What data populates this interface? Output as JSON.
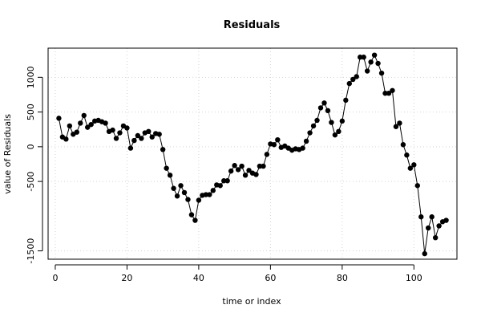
{
  "chart_data": {
    "type": "line",
    "title": "Residuals",
    "xlabel": "time or index",
    "ylabel": "value of Residuals",
    "xlim": [
      -2,
      112
    ],
    "ylim": [
      -1620,
      1420
    ],
    "xticks": [
      0,
      20,
      40,
      60,
      80,
      100
    ],
    "yticks": [
      -1500,
      -500,
      0,
      500,
      1000
    ],
    "grid": true,
    "line_color": "#000000",
    "point_color": "#000000",
    "grid_color": "#d3d3d3",
    "series": [
      {
        "values": [
          [
            1,
            410
          ],
          [
            2,
            140
          ],
          [
            3,
            110
          ],
          [
            4,
            300
          ],
          [
            5,
            180
          ],
          [
            6,
            210
          ],
          [
            7,
            340
          ],
          [
            8,
            450
          ],
          [
            9,
            280
          ],
          [
            10,
            320
          ],
          [
            11,
            370
          ],
          [
            12,
            380
          ],
          [
            13,
            360
          ],
          [
            14,
            340
          ],
          [
            15,
            220
          ],
          [
            16,
            240
          ],
          [
            17,
            120
          ],
          [
            18,
            200
          ],
          [
            19,
            300
          ],
          [
            20,
            270
          ],
          [
            21,
            -20
          ],
          [
            22,
            90
          ],
          [
            23,
            160
          ],
          [
            24,
            120
          ],
          [
            25,
            200
          ],
          [
            26,
            220
          ],
          [
            27,
            140
          ],
          [
            28,
            190
          ],
          [
            29,
            180
          ],
          [
            30,
            -40
          ],
          [
            31,
            -310
          ],
          [
            32,
            -410
          ],
          [
            33,
            -600
          ],
          [
            34,
            -710
          ],
          [
            35,
            -560
          ],
          [
            36,
            -660
          ],
          [
            37,
            -760
          ],
          [
            38,
            -980
          ],
          [
            39,
            -1060
          ],
          [
            40,
            -770
          ],
          [
            41,
            -700
          ],
          [
            42,
            -690
          ],
          [
            43,
            -690
          ],
          [
            44,
            -630
          ],
          [
            45,
            -550
          ],
          [
            46,
            -560
          ],
          [
            47,
            -490
          ],
          [
            48,
            -490
          ],
          [
            49,
            -350
          ],
          [
            50,
            -270
          ],
          [
            51,
            -330
          ],
          [
            52,
            -280
          ],
          [
            53,
            -410
          ],
          [
            54,
            -340
          ],
          [
            55,
            -380
          ],
          [
            56,
            -400
          ],
          [
            57,
            -280
          ],
          [
            58,
            -280
          ],
          [
            59,
            -110
          ],
          [
            60,
            40
          ],
          [
            61,
            30
          ],
          [
            62,
            100
          ],
          [
            63,
            -10
          ],
          [
            64,
            10
          ],
          [
            65,
            -20
          ],
          [
            66,
            -50
          ],
          [
            67,
            -30
          ],
          [
            68,
            -40
          ],
          [
            69,
            -20
          ],
          [
            70,
            80
          ],
          [
            71,
            200
          ],
          [
            72,
            300
          ],
          [
            73,
            380
          ],
          [
            74,
            560
          ],
          [
            75,
            630
          ],
          [
            76,
            520
          ],
          [
            77,
            350
          ],
          [
            78,
            170
          ],
          [
            79,
            220
          ],
          [
            80,
            370
          ],
          [
            81,
            670
          ],
          [
            82,
            910
          ],
          [
            83,
            970
          ],
          [
            84,
            1010
          ],
          [
            85,
            1290
          ],
          [
            86,
            1290
          ],
          [
            87,
            1090
          ],
          [
            88,
            1220
          ],
          [
            89,
            1320
          ],
          [
            90,
            1200
          ],
          [
            91,
            1060
          ],
          [
            92,
            770
          ],
          [
            93,
            770
          ],
          [
            94,
            810
          ],
          [
            95,
            290
          ],
          [
            96,
            340
          ],
          [
            97,
            30
          ],
          [
            98,
            -120
          ],
          [
            99,
            -310
          ],
          [
            100,
            -260
          ],
          [
            101,
            -560
          ],
          [
            102,
            -1010
          ],
          [
            103,
            -1540
          ],
          [
            104,
            -1170
          ],
          [
            105,
            -1010
          ],
          [
            106,
            -1310
          ],
          [
            107,
            -1140
          ],
          [
            108,
            -1080
          ],
          [
            109,
            -1060
          ]
        ]
      }
    ]
  }
}
